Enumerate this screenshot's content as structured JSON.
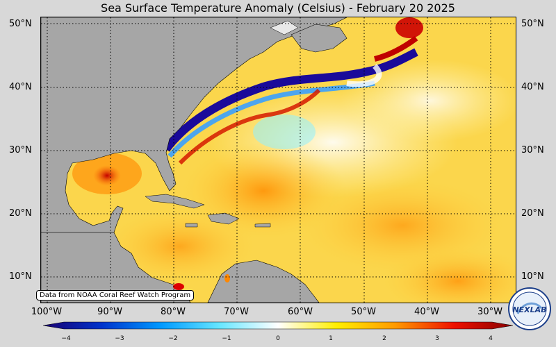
{
  "title": "Sea Surface Temperature Anomaly (Celsius) - February 20 2025",
  "credit": "Data from NOAA Coral Reef Watch Program",
  "logo_text": "NEXLAB",
  "lat_labels": [
    "50°N",
    "40°N",
    "30°N",
    "20°N",
    "10°N"
  ],
  "lon_labels": [
    "100°W",
    "90°W",
    "80°W",
    "70°W",
    "60°W",
    "50°W",
    "40°W",
    "30°W"
  ],
  "colorbar": {
    "min": -4,
    "max": 4,
    "ticks": [
      "−4",
      "−3",
      "−2",
      "−1",
      "0",
      "1",
      "2",
      "3",
      "4"
    ],
    "colors": [
      "#1a0070",
      "#0033cc",
      "#0099ff",
      "#66e6ff",
      "#ffffff",
      "#ffee00",
      "#ff9900",
      "#ee1100",
      "#880000"
    ]
  },
  "colors": {
    "land": "#a6a6a6",
    "ocean_warm": "#fbd54a",
    "background": "#d8d8d8"
  }
}
